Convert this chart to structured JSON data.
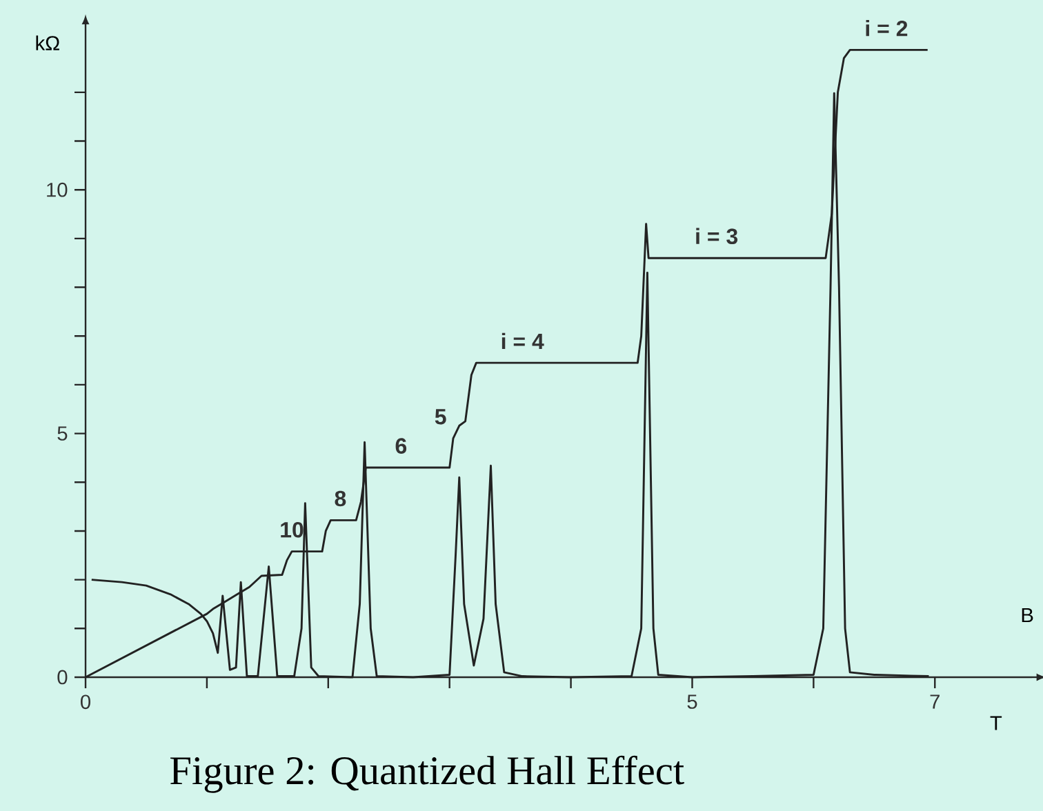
{
  "chart_data": {
    "type": "line",
    "title": "Figure 2: Quantized Hall Effect",
    "xlabel": "B",
    "ylabel": "kΩ",
    "xlim": [
      0,
      7.8
    ],
    "ylim": [
      0,
      13.3
    ],
    "xticks": [
      0,
      {
        "value": 1,
        "label": null
      },
      {
        "value": 2,
        "label": null
      },
      {
        "value": 3,
        "label": null
      },
      {
        "value": 4,
        "label": null
      },
      5,
      {
        "value": 6,
        "label": null
      },
      7
    ],
    "yticks": [
      0,
      {
        "value": 1,
        "label": null
      },
      {
        "value": 2,
        "label": null
      },
      {
        "value": 3,
        "label": null
      },
      {
        "value": 4,
        "label": null
      },
      5,
      {
        "value": 6,
        "label": null
      },
      {
        "value": 7,
        "label": null
      },
      {
        "value": 8,
        "label": null
      },
      {
        "value": 9,
        "label": null
      },
      10,
      {
        "value": 11,
        "label": null
      },
      {
        "value": 12,
        "label": null
      }
    ],
    "series": [
      {
        "color": "#222222",
        "x": [
          0,
          1.0,
          1.05,
          1.15,
          1.25,
          1.35,
          1.45,
          1.62,
          1.66,
          1.7,
          1.95,
          1.98,
          2.02,
          2.23,
          2.27,
          2.31,
          3.0,
          3.03,
          3.08,
          3.13,
          3.18,
          3.22,
          4.55,
          4.58,
          4.62,
          4.64,
          6.1,
          6.15,
          6.2,
          6.25,
          6.3,
          6.94
        ],
        "values": [
          0,
          1.3,
          1.4,
          1.55,
          1.7,
          1.85,
          2.08,
          2.1,
          2.4,
          2.58,
          2.58,
          3.0,
          3.22,
          3.22,
          3.6,
          4.3,
          4.3,
          4.9,
          5.16,
          5.25,
          6.2,
          6.45,
          6.45,
          7.0,
          9.3,
          8.6,
          8.6,
          9.5,
          12.0,
          12.7,
          12.87,
          12.87
        ]
      },
      {
        "color": "#222222",
        "x": [
          0.05,
          0.3,
          0.5,
          0.7,
          0.85,
          0.95,
          1.0,
          1.05,
          1.09,
          1.13,
          1.19,
          1.24,
          1.28,
          1.33,
          1.42,
          1.51,
          1.58,
          1.72,
          1.78,
          1.81,
          1.86,
          1.92,
          2.2,
          2.26,
          2.3,
          2.35,
          2.4,
          2.7,
          3.0,
          3.05,
          3.08,
          3.12,
          3.2,
          3.28,
          3.34,
          3.38,
          3.45,
          3.6,
          4.0,
          4.5,
          4.58,
          4.63,
          4.68,
          4.72,
          5.0,
          5.5,
          6.0,
          6.08,
          6.14,
          6.17,
          6.21,
          6.26,
          6.3,
          6.5,
          6.8,
          6.95
        ],
        "values": [
          2.0,
          1.95,
          1.88,
          1.7,
          1.5,
          1.3,
          1.15,
          0.9,
          0.5,
          1.67,
          0.15,
          0.2,
          1.95,
          0.02,
          0.02,
          2.27,
          0.02,
          0.02,
          1.0,
          3.57,
          0.2,
          0.02,
          0.0,
          1.5,
          4.82,
          1.0,
          0.02,
          0.0,
          0.05,
          2.5,
          4.1,
          1.5,
          0.24,
          1.2,
          4.34,
          1.5,
          0.1,
          0.02,
          0.0,
          0.02,
          1.0,
          8.3,
          1.0,
          0.05,
          0.0,
          0.02,
          0.05,
          1.0,
          8.0,
          11.98,
          8.0,
          1.0,
          0.1,
          0.05,
          0.03,
          0.02
        ]
      }
    ],
    "annotations": [
      {
        "text": "i = 2",
        "x": 6.6,
        "y": 12.87
      },
      {
        "text": "i = 3",
        "x": 5.2,
        "y": 8.6
      },
      {
        "text": "i = 4",
        "x": 3.6,
        "y": 6.45
      },
      {
        "text": "5",
        "x": 3.03,
        "y": 4.9
      },
      {
        "text": "6",
        "x": 2.6,
        "y": 4.3
      },
      {
        "text": "8",
        "x": 2.1,
        "y": 3.22
      },
      {
        "text": "10",
        "x": 1.7,
        "y": 2.58
      },
      "T"
    ]
  }
}
